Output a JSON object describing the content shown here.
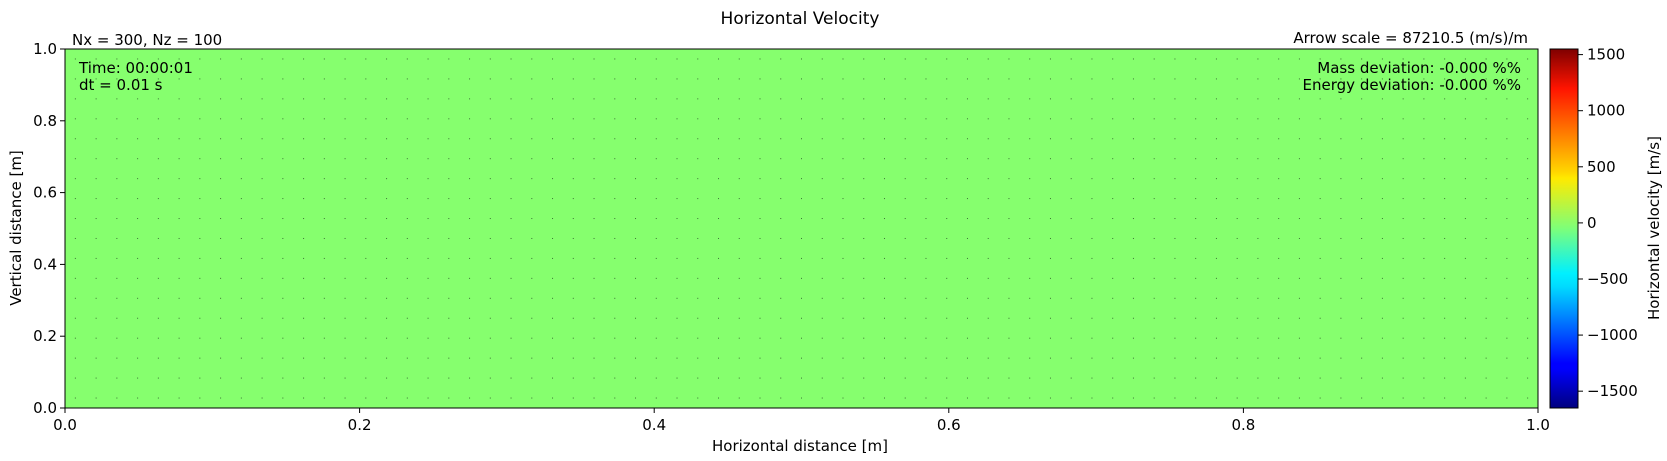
{
  "chart_data": {
    "type": "heatmap",
    "title": "Horizontal Velocity",
    "xlabel": "Horizontal distance [m]",
    "ylabel": "Vertical distance [m]",
    "xlim": [
      0.0,
      1.0
    ],
    "ylim": [
      0.0,
      1.0
    ],
    "x_ticks": [
      "0.0",
      "0.2",
      "0.4",
      "0.6",
      "0.8",
      "1.0"
    ],
    "y_ticks": [
      "0.0",
      "0.2",
      "0.4",
      "0.6",
      "0.8",
      "1.0"
    ],
    "field_value": 0,
    "field_color": "#86ff6e",
    "arrow_grid": {
      "nx": 71,
      "ny": 18
    },
    "annotations": {
      "grid_size": "Nx = 300, Nz = 100",
      "arrow_scale": "Arrow scale = 87210.5 (m/s)/m",
      "time": "Time: 00:00:01",
      "dt": "dt = 0.01 s",
      "mass_deviation": "Mass deviation: -0.000 %%",
      "energy_deviation": "Energy deviation: -0.000 %%"
    },
    "colorbar": {
      "label": "Horizontal velocity [m/s]",
      "range": [
        -1650,
        1550
      ],
      "ticks": [
        1500,
        1000,
        500,
        0,
        -500,
        -1000,
        -1500
      ],
      "tick_labels": [
        "1500",
        "1000",
        "500",
        "0",
        "−500",
        "−1000",
        "−1500"
      ],
      "colormap": "jet"
    }
  }
}
